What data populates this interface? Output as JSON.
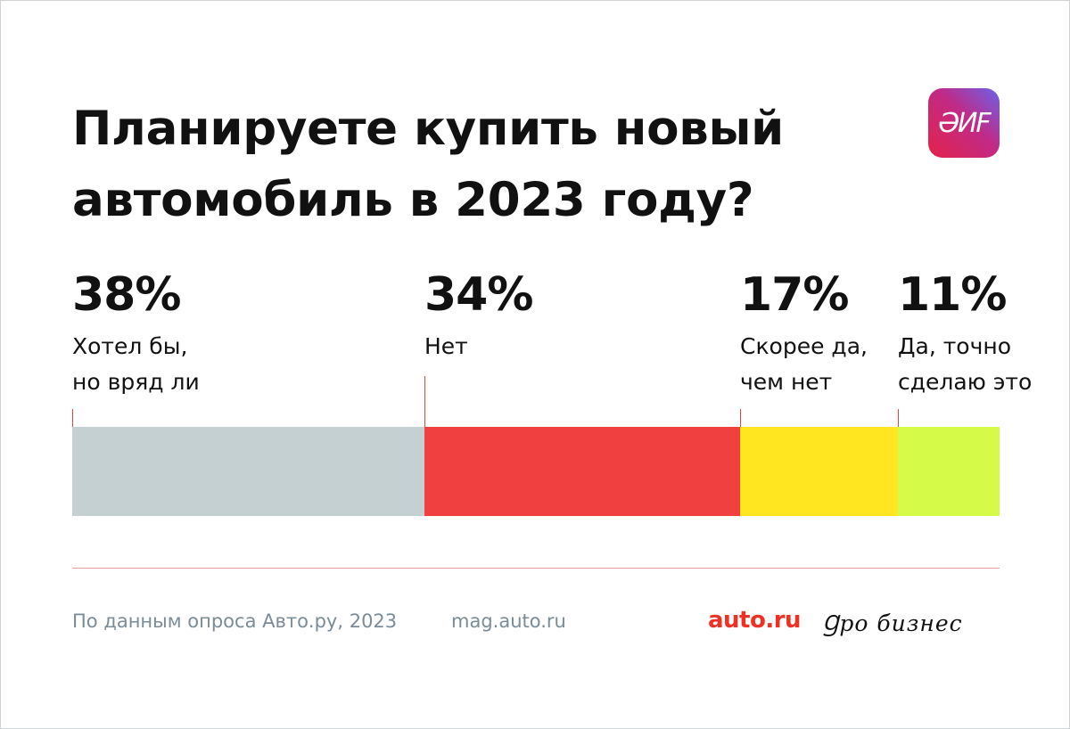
{
  "title": "Планируете купить новый автомобиль в 2023 году?",
  "logos": {
    "aif": "АИФ",
    "auto_ru": "auto.ru",
    "pro_biznes": "Про бизнес"
  },
  "footer": {
    "source": "По данным опроса Авто.ру, 2023",
    "site": "mag.auto.ru"
  },
  "colors": {
    "accent": "#ef4040",
    "divider": "#e6a0a0",
    "muted_text": "#7a8c98"
  },
  "chart_data": {
    "type": "bar",
    "orientation": "horizontal-stacked",
    "unit": "%",
    "categories": [
      "Хотел бы, но вряд ли",
      "Нет",
      "Скорее да, чем нет",
      "Да, точно сделаю это"
    ],
    "values": [
      38,
      34,
      17,
      11
    ],
    "value_labels": [
      "38%",
      "34%",
      "17%",
      "11%"
    ],
    "label_lines": [
      [
        "Хотел бы,",
        "но вряд ли"
      ],
      [
        "Нет"
      ],
      [
        "Скорее да,",
        "чем нет"
      ],
      [
        "Да, точно",
        "сделаю это"
      ]
    ],
    "colors": [
      "#c5d0d3",
      "#f04040",
      "#ffe620",
      "#d6fa48"
    ],
    "xlim": [
      0,
      100
    ]
  }
}
